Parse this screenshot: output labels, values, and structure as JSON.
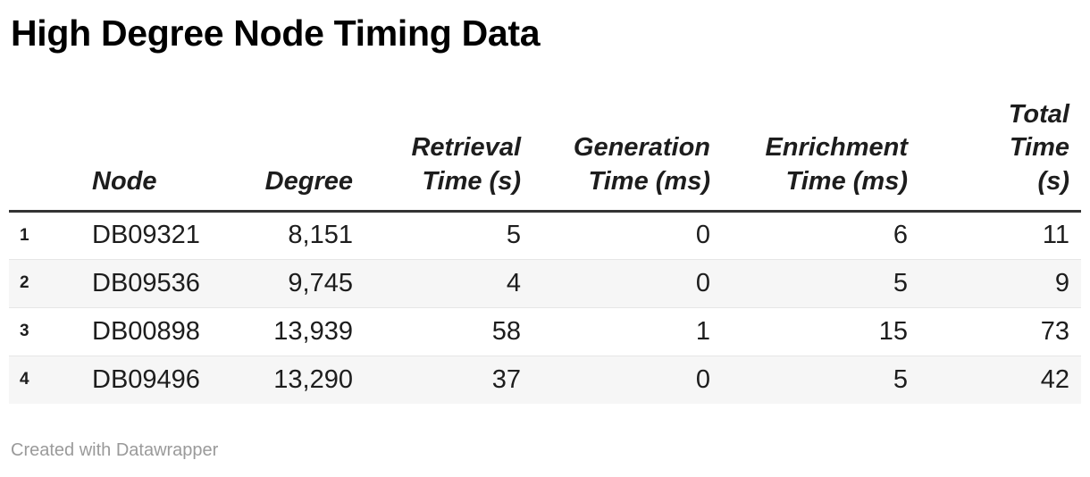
{
  "page": {
    "title": "High Degree Node Timing Data",
    "attribution": "Created with Datawrapper"
  },
  "colors": {
    "background": "#ffffff",
    "title_text": "#000000",
    "body_text": "#1d1d1d",
    "header_rule": "#333333",
    "row_separator": "#e6e6e6",
    "zebra_stripe": "#f6f6f6",
    "attribution_text": "#9a9a9a"
  },
  "table": {
    "headers": {
      "node": {
        "label": "Node",
        "display": "Node",
        "align": "left"
      },
      "degree": {
        "label": "Degree",
        "display": "Degree",
        "align": "right"
      },
      "retrieval": {
        "label": "Retrieval Time (s)",
        "display": "Retrieval\nTime (s)",
        "align": "right"
      },
      "generation": {
        "label": "Generation Time (ms)",
        "display": "Generation\nTime (ms)",
        "align": "right"
      },
      "enrichment": {
        "label": "Enrichment Time (ms)",
        "display": "Enrichment\nTime (ms)",
        "align": "right"
      },
      "total": {
        "label": "Total Time (s)",
        "display": "Total\nTime\n(s)",
        "align": "right"
      }
    },
    "rows": [
      {
        "num": "1",
        "node": "DB09321",
        "degree": "8,151",
        "retrieval": "5",
        "generation": "0",
        "enrichment": "6",
        "total": "11"
      },
      {
        "num": "2",
        "node": "DB09536",
        "degree": "9,745",
        "retrieval": "4",
        "generation": "0",
        "enrichment": "5",
        "total": "9"
      },
      {
        "num": "3",
        "node": "DB00898",
        "degree": "13,939",
        "retrieval": "58",
        "generation": "1",
        "enrichment": "15",
        "total": "73"
      },
      {
        "num": "4",
        "node": "DB09496",
        "degree": "13,290",
        "retrieval": "37",
        "generation": "0",
        "enrichment": "5",
        "total": "42"
      }
    ]
  },
  "chart_data": {
    "type": "table",
    "title": "High Degree Node Timing Data",
    "columns": [
      "Node",
      "Degree",
      "Retrieval Time (s)",
      "Generation Time (ms)",
      "Enrichment Time (ms)",
      "Total Time (s)"
    ],
    "rows": [
      [
        "DB09321",
        8151,
        5,
        0,
        6,
        11
      ],
      [
        "DB09536",
        9745,
        4,
        0,
        5,
        9
      ],
      [
        "DB00898",
        13939,
        58,
        1,
        15,
        73
      ],
      [
        "DB09496",
        13290,
        37,
        0,
        5,
        42
      ]
    ],
    "layout_hints": {
      "zebra_striping": true,
      "row_number_column": true,
      "header_style": "bold-italic, numeric columns right-aligned",
      "attribution": "Created with Datawrapper"
    }
  }
}
